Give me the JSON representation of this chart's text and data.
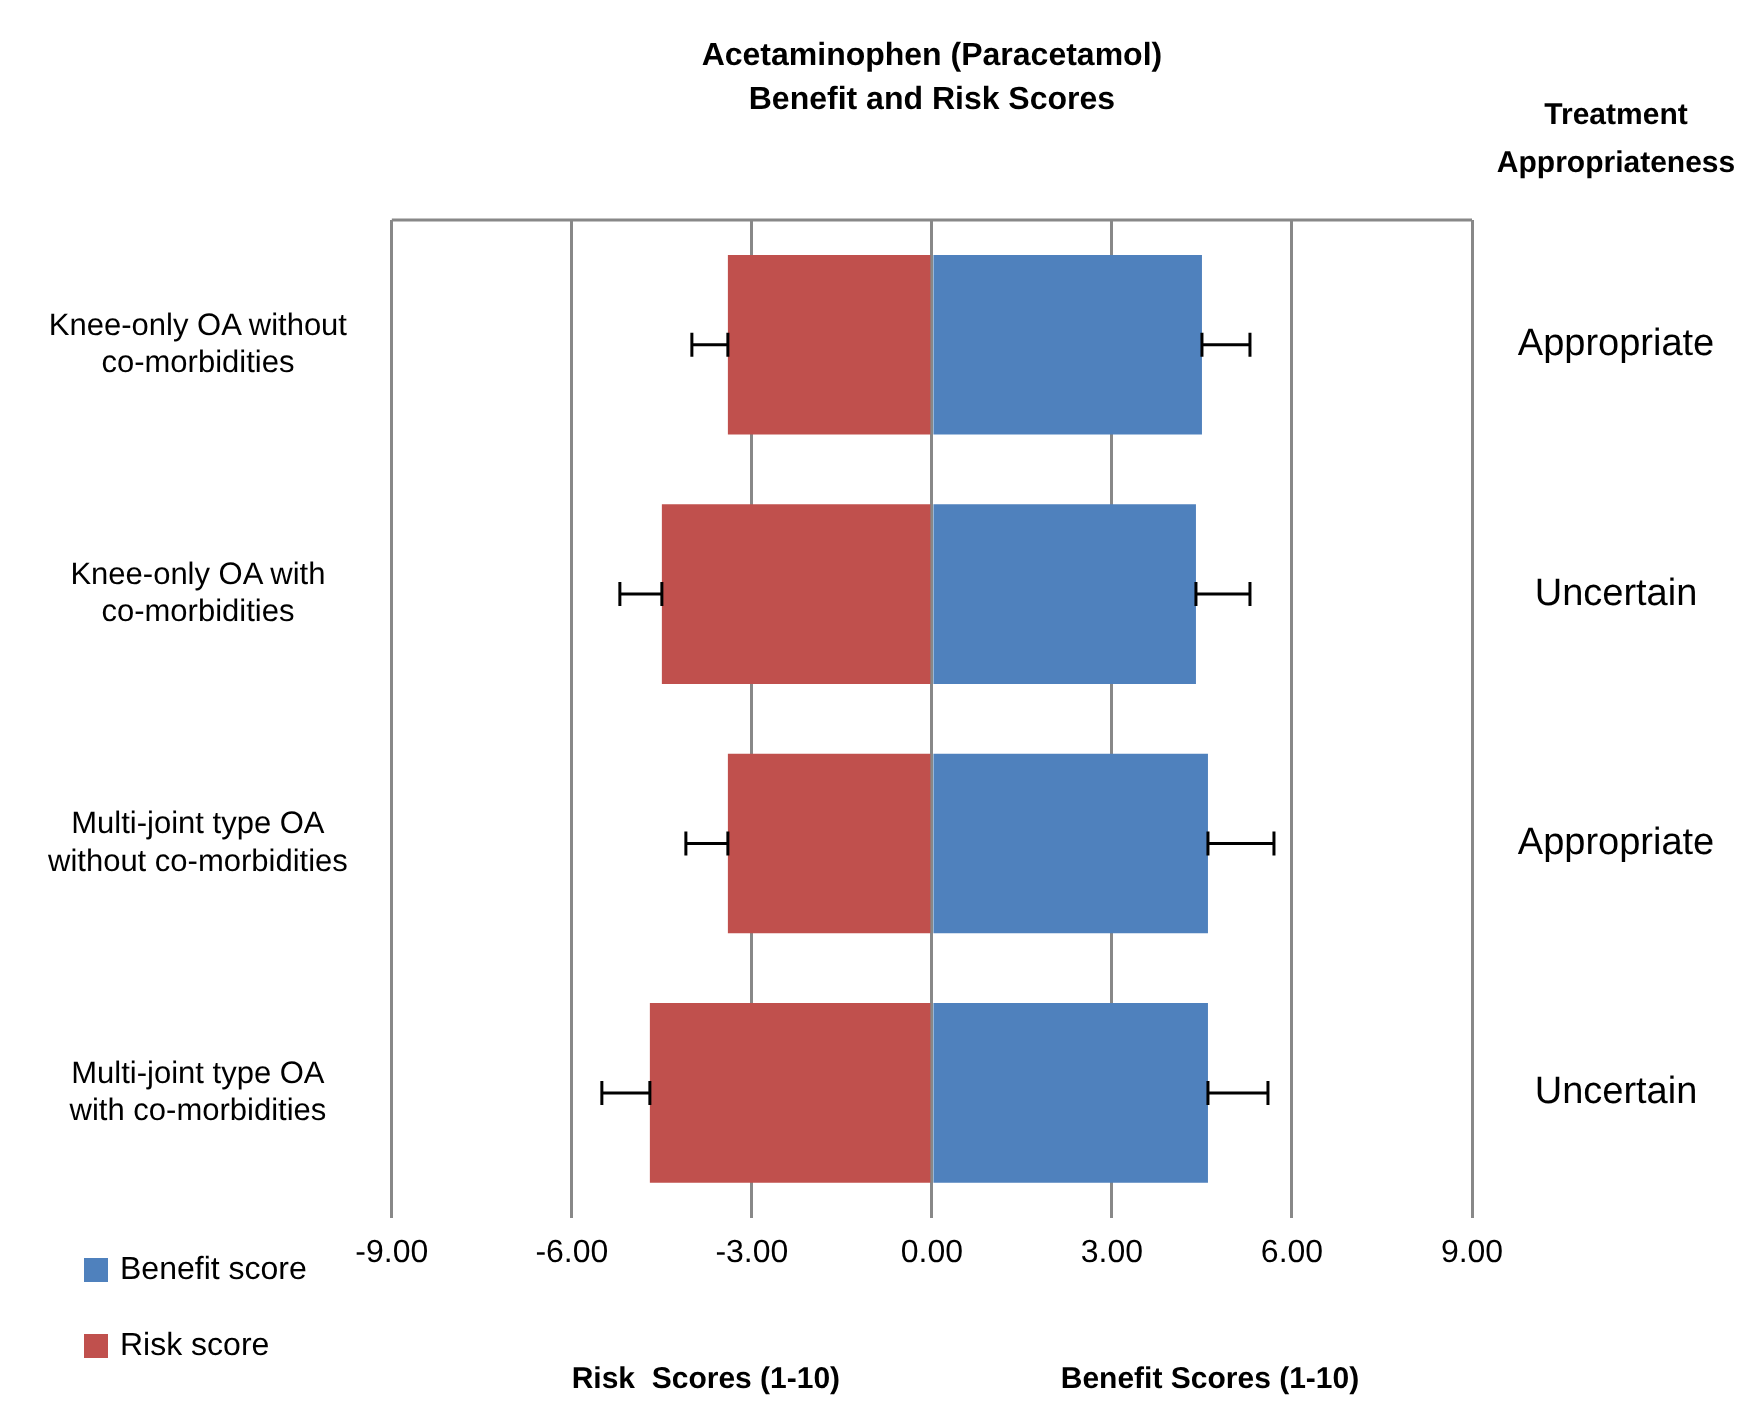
{
  "chart_data": {
    "type": "bar",
    "orientation": "horizontal",
    "title": "Acetaminophen (Paracetamol)\nBenefit and Risk Scores",
    "categories": [
      "Knee-only OA without co-morbidities",
      "Knee-only OA with co-morbidities",
      "Multi-joint type OA without co-morbidities",
      "Multi-joint type OA with co-morbidities"
    ],
    "series": [
      {
        "name": "Benefit score",
        "color": "#4f81bd",
        "values": [
          4.5,
          4.4,
          4.6,
          4.6
        ],
        "errors": [
          [
            4.5,
            5.3
          ],
          [
            4.4,
            5.3
          ],
          [
            4.6,
            5.7
          ],
          [
            4.6,
            5.6
          ]
        ]
      },
      {
        "name": "Risk score",
        "color": "#c0504d",
        "values": [
          -3.4,
          -4.5,
          -3.4,
          -4.7
        ],
        "errors": [
          [
            -4.0,
            -3.4
          ],
          [
            -5.2,
            -4.5
          ],
          [
            -4.1,
            -3.4
          ],
          [
            -5.5,
            -4.7
          ]
        ]
      }
    ],
    "xlim": [
      -9,
      9
    ],
    "xticks": [
      {
        "value": -9,
        "label": "-9.00"
      },
      {
        "value": -6,
        "label": "-6.00"
      },
      {
        "value": -3,
        "label": "-3.00"
      },
      {
        "value": 0,
        "label": "0.00"
      },
      {
        "value": 3,
        "label": "3.00"
      },
      {
        "value": 6,
        "label": "6.00"
      },
      {
        "value": 9,
        "label": "9.00"
      }
    ],
    "grid": "x",
    "legend": "bottom left",
    "stacked": true,
    "annotations": [
      "Treatment\nAppropriateness",
      "Risk  Scores (1-10)",
      "Benefit Scores (1-10)",
      "Appropriate",
      "Uncertain",
      "Appropriate",
      "Uncertain"
    ]
  }
}
